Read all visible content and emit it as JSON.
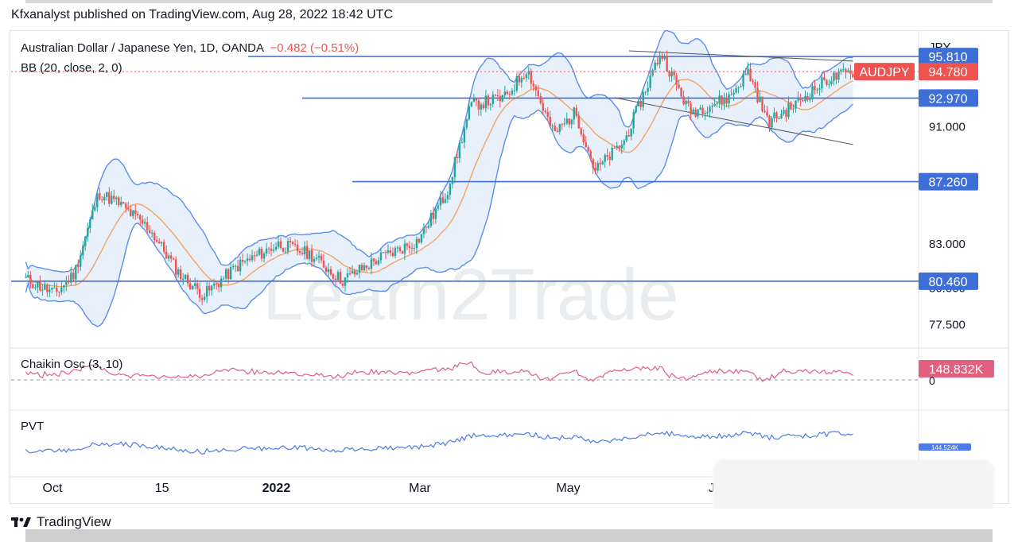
{
  "header": {
    "publisher_text": "Kfxanalyst published on TradingView.com, Aug 28, 2022 18:42 UTC"
  },
  "footer": {
    "brand": "TradingView"
  },
  "watermark": "Learn2Trade",
  "colors": {
    "bull": "#26a69a",
    "bear": "#ef5350",
    "basis": "#f7a35c",
    "band": "#5b8def",
    "level": "#3d6fd6",
    "chaikin": "#e0607e",
    "pvt": "#4f7be8",
    "fill": "#e8f1fb"
  },
  "chart_data": [
    {
      "type": "candlestick",
      "title": "Australian Dollar / Japanese Yen, 1D, OANDA",
      "change": "−0.482 (−0.51%)",
      "indicator_label": "BB (20, close, 2, 0)",
      "axis_unit": "JPY",
      "y_ticks": [
        "91.000",
        "83.000",
        "77.500"
      ],
      "hidden_tick": "80.000",
      "x_ticks": [
        "Oct",
        "15",
        "2022",
        "Mar",
        "May",
        "Jul"
      ],
      "ylim": [
        76.0,
        97.5
      ],
      "price_close": 94.78,
      "price_label": "94.780",
      "symbol_badge": "AUDJPY",
      "levels": [
        {
          "value": 95.81,
          "label": "95.810"
        },
        {
          "value": 92.97,
          "label": "92.970"
        },
        {
          "value": 87.26,
          "label": "87.260"
        },
        {
          "value": 80.46,
          "label": "80.460"
        }
      ],
      "trendlines": [
        {
          "from": [
            "2022-05-26",
            96.2
          ],
          "to": [
            "2022-08-26",
            95.5
          ]
        },
        {
          "from": [
            "2022-05-20",
            93.0
          ],
          "to": [
            "2022-08-26",
            89.8
          ]
        }
      ],
      "path_points": [
        [
          "2021-09-20",
          80.6
        ],
        [
          "2021-10-02",
          79.6
        ],
        [
          "2021-10-10",
          81.0
        ],
        [
          "2021-10-20",
          86.5
        ],
        [
          "2021-10-28",
          85.8
        ],
        [
          "2021-11-10",
          84.0
        ],
        [
          "2021-11-22",
          81.0
        ],
        [
          "2021-12-02",
          79.5
        ],
        [
          "2021-12-16",
          81.5
        ],
        [
          "2022-01-02",
          83.0
        ],
        [
          "2022-01-15",
          82.3
        ],
        [
          "2022-01-28",
          80.5
        ],
        [
          "2022-02-12",
          82.0
        ],
        [
          "2022-02-28",
          83.2
        ],
        [
          "2022-03-12",
          86.5
        ],
        [
          "2022-03-22",
          92.5
        ],
        [
          "2022-04-05",
          93.0
        ],
        [
          "2022-04-14",
          95.0
        ],
        [
          "2022-04-25",
          90.5
        ],
        [
          "2022-05-04",
          92.0
        ],
        [
          "2022-05-12",
          88.0
        ],
        [
          "2022-05-24",
          90.0
        ],
        [
          "2022-06-08",
          96.1
        ],
        [
          "2022-06-20",
          92.0
        ],
        [
          "2022-07-06",
          93.0
        ],
        [
          "2022-07-14",
          94.8
        ],
        [
          "2022-07-22",
          91.3
        ],
        [
          "2022-08-02",
          92.5
        ],
        [
          "2022-08-15",
          94.2
        ],
        [
          "2022-08-26",
          94.78
        ]
      ]
    },
    {
      "type": "line",
      "indicator_label": "Chaikin Osc (3, 10)",
      "value_label": "148.832K",
      "zero_label": "0"
    },
    {
      "type": "line",
      "indicator_label": "PVT",
      "value_label": "144.524K"
    }
  ]
}
